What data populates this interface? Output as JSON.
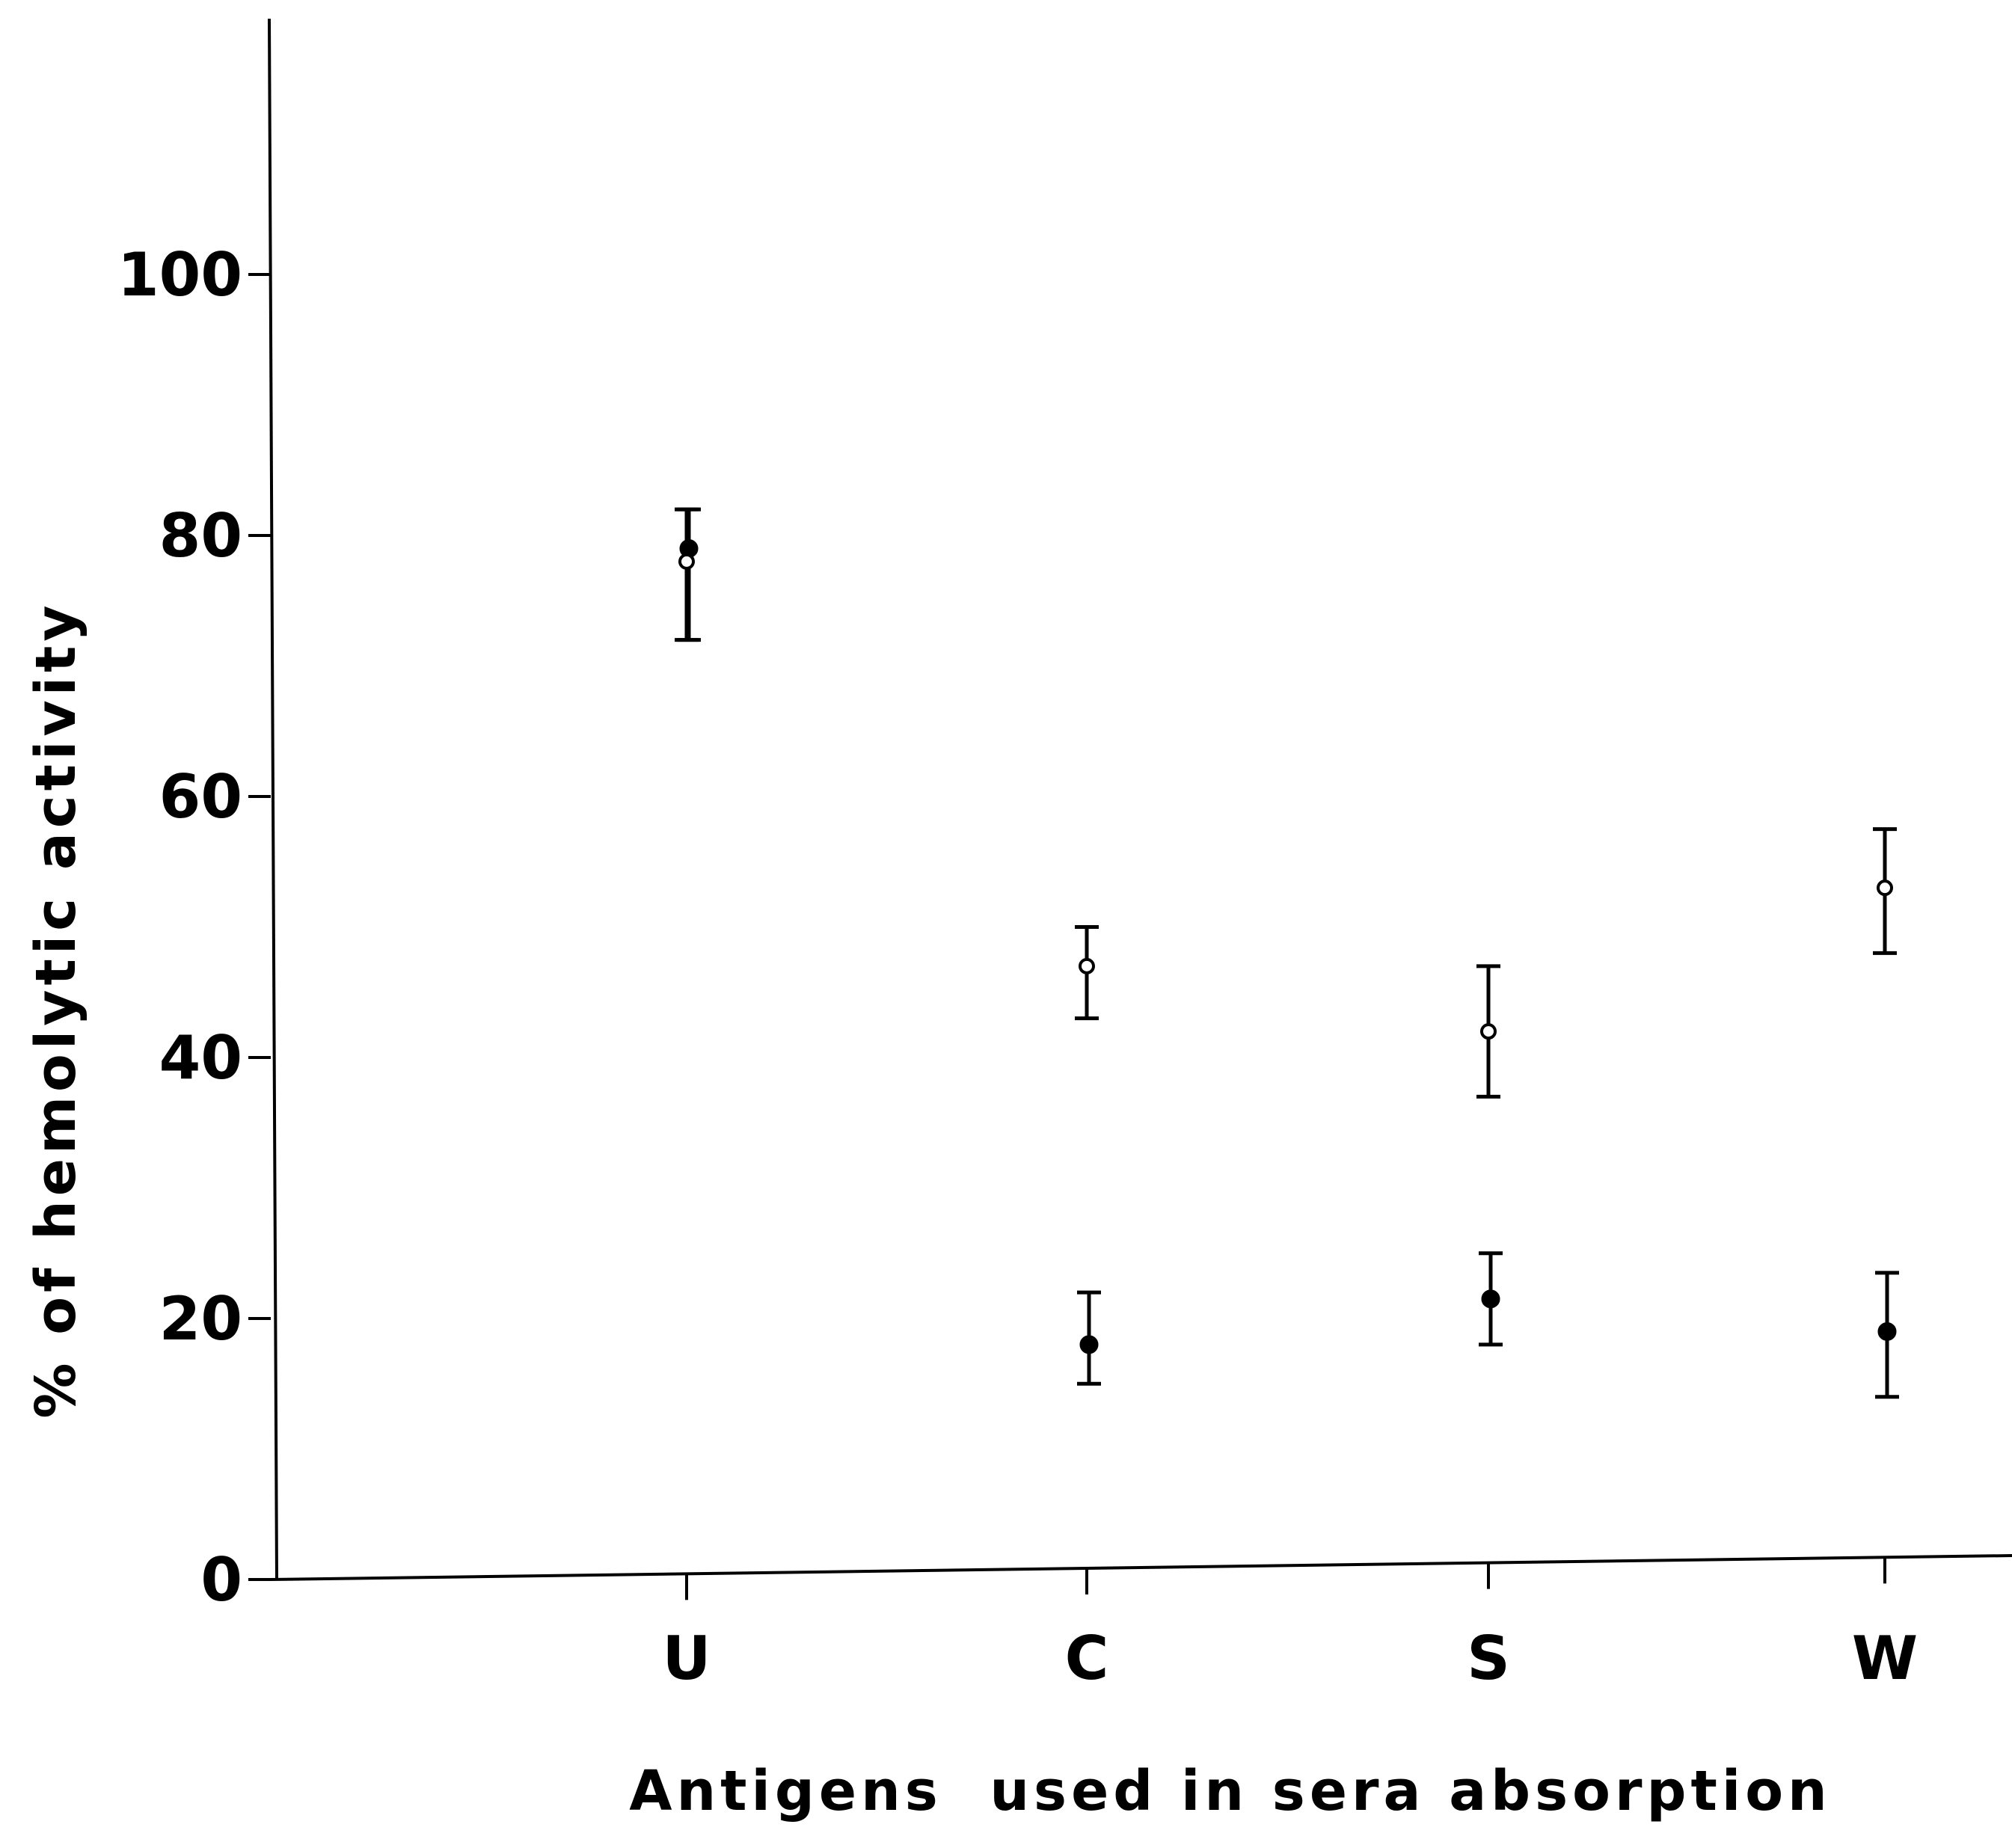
{
  "chart_data": {
    "type": "scatter",
    "xlabel": "Antigens  used in sera absorption",
    "ylabel": "% of hemolytic activity",
    "categories": [
      "U",
      "C",
      "S",
      "W"
    ],
    "ylim": [
      0,
      120
    ],
    "yticks": [
      0,
      20,
      40,
      60,
      80,
      100
    ],
    "series": [
      {
        "marker": "filled",
        "values": [
          79,
          18,
          21.5,
          19
        ],
        "err_low": [
          72,
          15,
          18,
          14
        ],
        "err_high": [
          82,
          22,
          25,
          23.5
        ]
      },
      {
        "marker": "open",
        "values": [
          78,
          47,
          42,
          53
        ],
        "err_low": [
          72,
          43,
          37,
          48
        ],
        "err_high": [
          82,
          50,
          47,
          57.5
        ]
      }
    ],
    "grid": false,
    "legend": "none"
  }
}
